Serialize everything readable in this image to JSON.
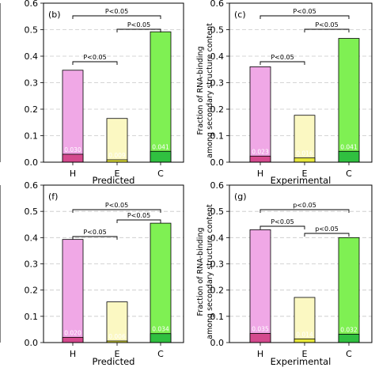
{
  "chart_data": [
    {
      "type": "bar",
      "panel_label": "(b)",
      "xlabel": "Predicted",
      "ylabel": "",
      "categories": [
        "H",
        "E",
        "C"
      ],
      "ylim": [
        0,
        0.6
      ],
      "yticks": [
        "0.0",
        "0.1",
        "0.2",
        "0.3",
        "0.4",
        "0.5",
        "0.6"
      ],
      "grid": "horizontal dashed",
      "series": [
        {
          "values": [
            0.347,
            0.165,
            0.492
          ]
        },
        {
          "values": [
            0.03,
            0.009,
            0.041
          ],
          "labels": [
            "0.030",
            "0.009",
            "0.041"
          ]
        }
      ],
      "annotations": [
        {
          "text": "P<0.05",
          "from": "H",
          "to": "C"
        },
        {
          "text": "P<0.05",
          "from": "E",
          "to": "C"
        },
        {
          "text": "P<0.05",
          "from": "H",
          "to": "E"
        }
      ]
    },
    {
      "type": "bar",
      "panel_label": "(c)",
      "xlabel": "Experimental",
      "ylabel": "Fraction of RNA-binding among secondary structure content",
      "categories": [
        "H",
        "E",
        "C"
      ],
      "ylim": [
        0,
        0.6
      ],
      "yticks": [
        "0.0",
        "0.1",
        "0.2",
        "0.3",
        "0.4",
        "0.5",
        "0.6"
      ],
      "grid": "horizontal dashed",
      "series": [
        {
          "values": [
            0.36,
            0.177,
            0.467
          ]
        },
        {
          "values": [
            0.023,
            0.016,
            0.041
          ],
          "labels": [
            "0.023",
            "0.016",
            "0.041"
          ]
        }
      ],
      "annotations": [
        {
          "text": "P<0.05",
          "from": "H",
          "to": "C"
        },
        {
          "text": "P<0.05",
          "from": "E",
          "to": "C"
        },
        {
          "text": "P<0.05",
          "from": "H",
          "to": "E"
        }
      ]
    },
    {
      "type": "bar",
      "panel_label": "(f)",
      "xlabel": "Predicted",
      "ylabel": "",
      "categories": [
        "H",
        "E",
        "C"
      ],
      "ylim": [
        0,
        0.6
      ],
      "yticks": [
        "0.0",
        "0.1",
        "0.2",
        "0.3",
        "0.4",
        "0.5",
        "0.6"
      ],
      "grid": "horizontal dashed",
      "series": [
        {
          "values": [
            0.393,
            0.155,
            0.455
          ]
        },
        {
          "values": [
            0.02,
            0.006,
            0.034
          ],
          "labels": [
            "0.020",
            "0.006",
            "0.034"
          ]
        }
      ],
      "annotations": [
        {
          "text": "P<0.05",
          "from": "H",
          "to": "C"
        },
        {
          "text": "P<0.05",
          "from": "E",
          "to": "C"
        },
        {
          "text": "P<0.05",
          "from": "H",
          "to": "E"
        }
      ]
    },
    {
      "type": "bar",
      "panel_label": "(g)",
      "xlabel": "Experimental",
      "ylabel": "Fraction of RNA-binding among secondary structure content",
      "categories": [
        "H",
        "E",
        "C"
      ],
      "ylim": [
        0,
        0.6
      ],
      "yticks": [
        "0.0",
        "0.1",
        "0.2",
        "0.3",
        "0.4",
        "0.5",
        "0.6"
      ],
      "grid": "horizontal dashed",
      "series": [
        {
          "values": [
            0.43,
            0.172,
            0.4
          ]
        },
        {
          "values": [
            0.035,
            0.014,
            0.032
          ],
          "labels": [
            "0.035",
            "0.014",
            "0.032"
          ]
        }
      ],
      "annotations": [
        {
          "text": "p<0.05",
          "from": "H",
          "to": "C"
        },
        {
          "text": "P<0.05",
          "from": "H",
          "to": "E"
        },
        {
          "text": "p<0.05",
          "from": "E",
          "to": "C"
        }
      ]
    }
  ],
  "colors": {
    "H_total": "#f0a8e6",
    "H_bind": "#d44a8e",
    "E_total": "#fbf8c2",
    "E_bind": "#e8e83c",
    "C_total": "#7ff053",
    "C_bind": "#30c040",
    "grid": "#c8c8c8"
  }
}
